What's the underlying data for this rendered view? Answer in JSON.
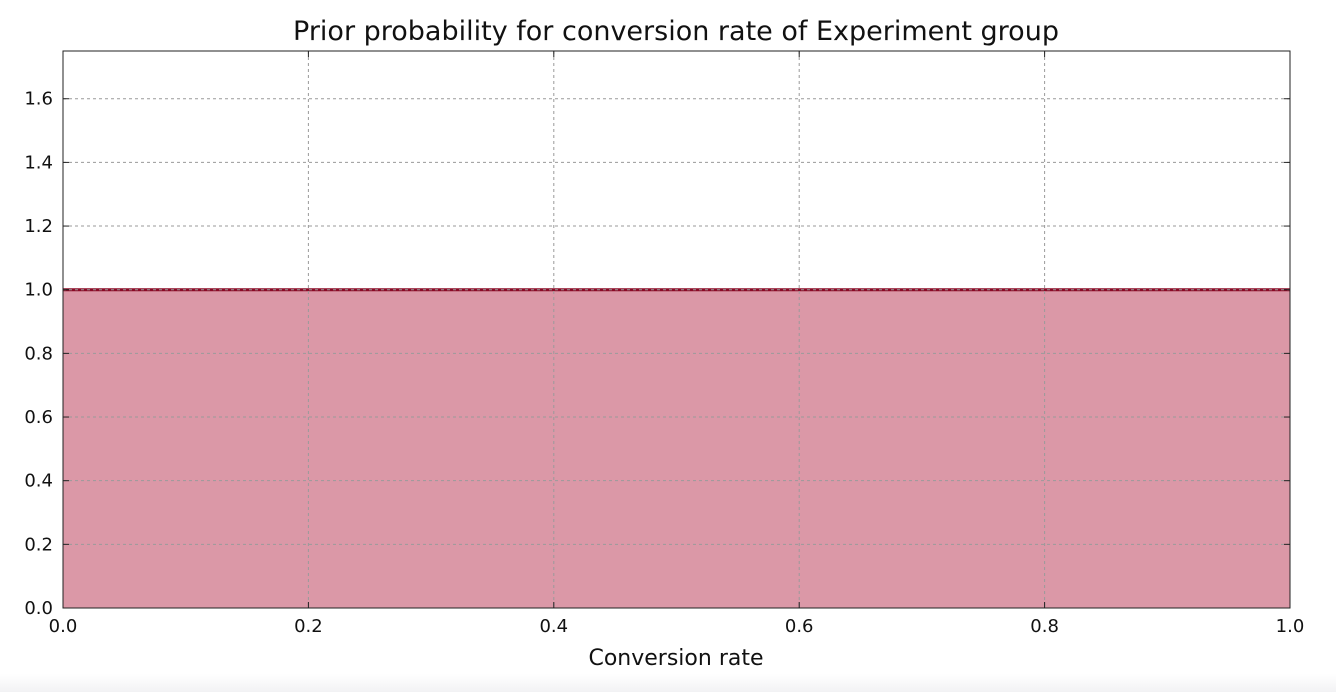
{
  "chart_data": {
    "type": "area",
    "title": "Prior probability for conversion rate of Experiment group",
    "xlabel": "Conversion rate",
    "ylabel": "",
    "xlim": [
      0.0,
      1.0
    ],
    "ylim": [
      0.0,
      1.75
    ],
    "x_ticks": [
      "0.0",
      "0.2",
      "0.4",
      "0.6",
      "0.8",
      "1.0"
    ],
    "y_ticks": [
      "0.0",
      "0.2",
      "0.4",
      "0.6",
      "0.8",
      "1.0",
      "1.2",
      "1.4",
      "1.6"
    ],
    "grid": true,
    "series": [
      {
        "x": [
          0.0,
          0.2,
          0.4,
          0.6,
          0.8,
          1.0
        ],
        "y": [
          1.0,
          1.0,
          1.0,
          1.0,
          1.0,
          1.0
        ],
        "line_color": "#8b0a26",
        "fill_color": "#db98a7"
      }
    ]
  }
}
